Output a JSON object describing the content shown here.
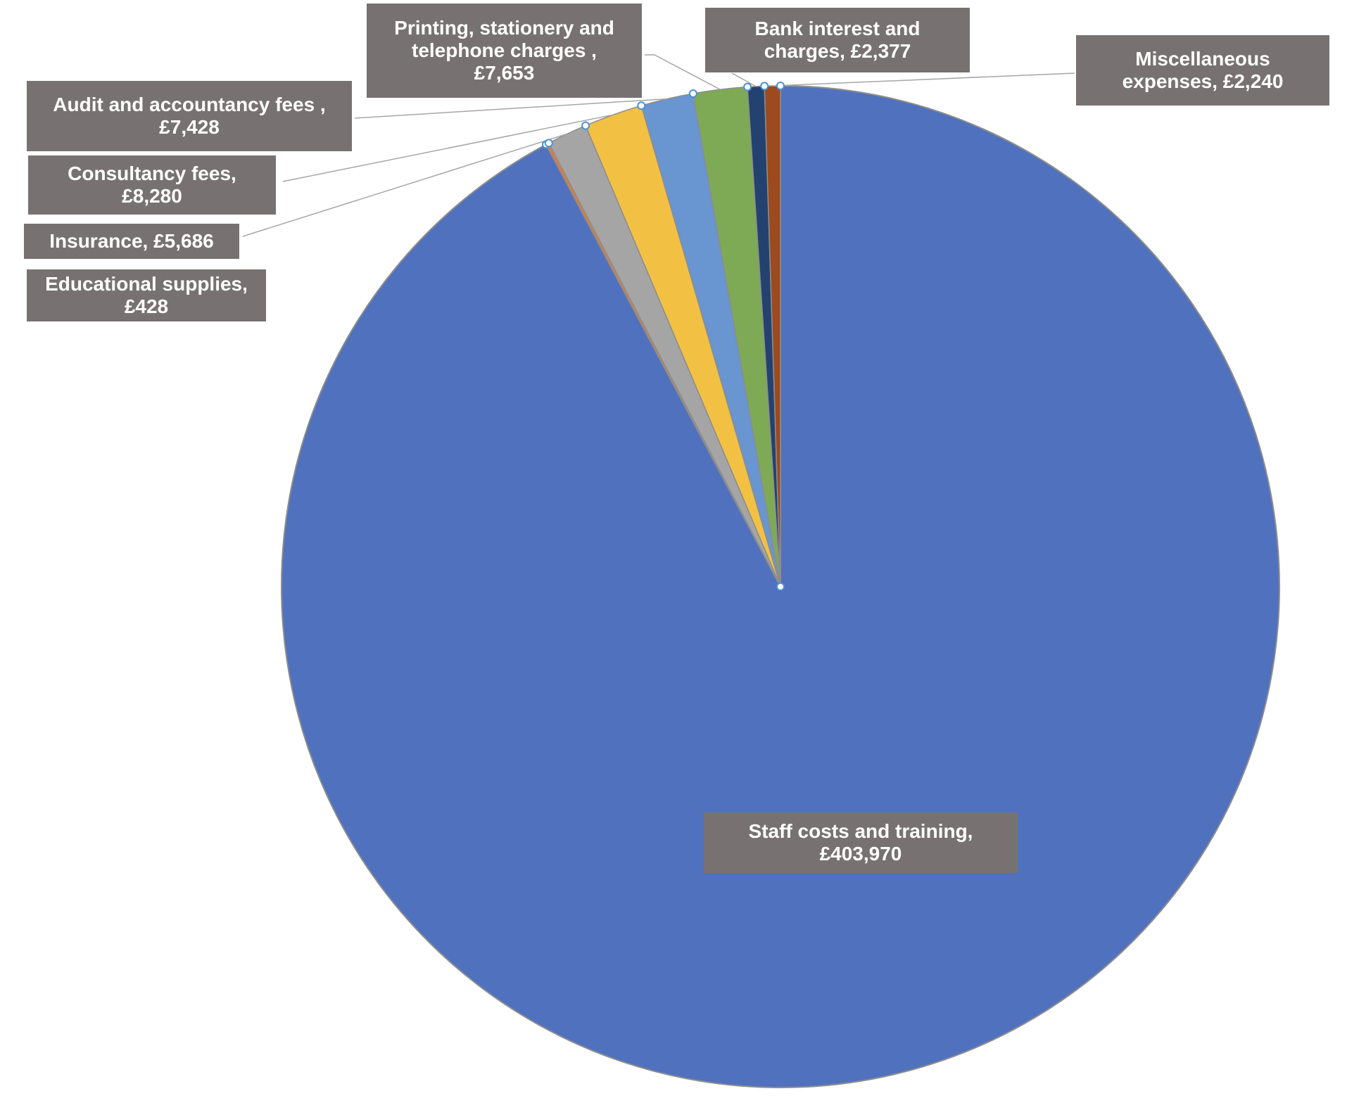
{
  "chart_data": {
    "type": "pie",
    "slices": [
      {
        "label": "Staff costs and training",
        "value": 403970,
        "value_text": "£403,970",
        "color": "#5071BD"
      },
      {
        "label": "Educational supplies",
        "value": 428,
        "value_text": "£428",
        "color": "#E07B39"
      },
      {
        "label": "Insurance",
        "value": 5686,
        "value_text": "£5,686",
        "color": "#A5A5A5"
      },
      {
        "label": "Consultancy fees",
        "value": 8280,
        "value_text": "£8,280",
        "color": "#F2C143"
      },
      {
        "label": "Audit and accountancy fees",
        "value": 7428,
        "value_text": "£7,428",
        "color": "#6995D0"
      },
      {
        "label": "Printing, stationery and telephone charges",
        "value": 7653,
        "value_text": "£7,653",
        "color": "#7EAA55"
      },
      {
        "label": "Bank interest and charges",
        "value": 2377,
        "value_text": "£2,377",
        "color": "#24426F"
      },
      {
        "label": "Miscellaneous expenses",
        "value": 2240,
        "value_text": "£2,240",
        "color": "#9C4A1E"
      }
    ],
    "labels": {
      "staff": "Staff costs and training,\n£403,970",
      "educational": "Educational supplies,\n£428",
      "insurance": "Insurance,  £5,686",
      "consultancy": "Consultancy fees,\n£8,280",
      "audit": "Audit and accountancy fees ,\n£7,428",
      "printing": "Printing, stationery and\ntelephone charges ,\n£7,653",
      "bank": "Bank interest and\ncharges,  £2,377",
      "misc": "Miscellaneous\nexpenses,  £2,240"
    },
    "legend": "none"
  }
}
